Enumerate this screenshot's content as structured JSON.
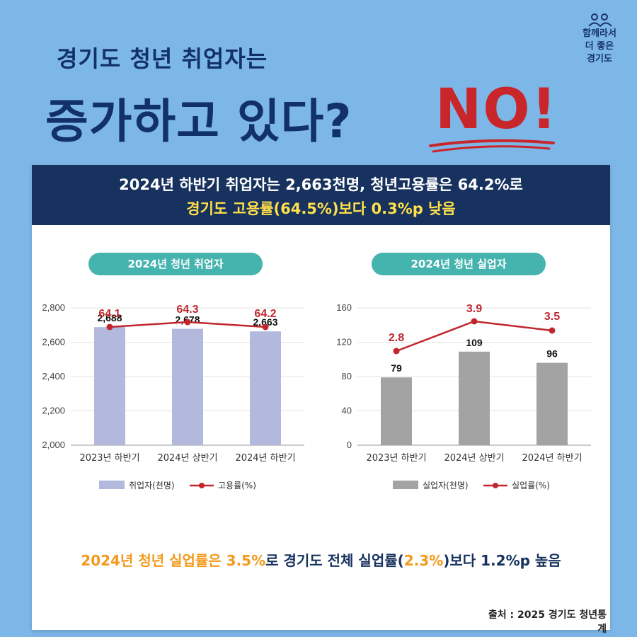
{
  "logo": {
    "lines": [
      "함께라서",
      "더 좋은",
      "경기도"
    ]
  },
  "headline": {
    "line1": "경기도 청년 취업자는",
    "line2": "증가하고 있다?",
    "answer": "NO!"
  },
  "banner": {
    "line1": "2024년 하반기 취업자는 2,663천명, 청년고용률은 64.2%로",
    "line2": "경기도 고용률(64.5%)보다 0.3%p 낮음"
  },
  "bottom_note": {
    "part1": "2024년 청년 실업률은 3.5%",
    "part2": "로 경기도 전체 실업률(",
    "part3": "2.3%",
    "part4": ")보다 1.2%p 높음"
  },
  "source": "출처 : 2025 경기도 청년통계",
  "colors": {
    "navy": "#17325e",
    "teal": "#45b3ae",
    "bar_employed": "#b3b9dc",
    "bar_unemployed": "#a3a3a3",
    "line_red": "#c0272d",
    "orange": "#f39a1c",
    "yellow": "#ffe04a"
  },
  "chart_data": [
    {
      "type": "bar",
      "title": "2024년 청년 취업자",
      "categories": [
        "2023년 하반기",
        "2024년 상반기",
        "2024년 하반기"
      ],
      "ylim": [
        2000,
        2800
      ],
      "yticks": [
        "2,000",
        "2,200",
        "2,400",
        "2,600",
        "2,800"
      ],
      "grid": true,
      "legend_position": "bottom",
      "series": [
        {
          "name": "취업자(천명)",
          "type": "bar",
          "values": [
            2688,
            2678,
            2663
          ],
          "labels": [
            "2,688",
            "2,678",
            "2,663"
          ]
        },
        {
          "name": "고용률(%)",
          "type": "line",
          "values": [
            64.1,
            64.3,
            64.2
          ],
          "labels": [
            "64.1",
            "64.3",
            "64.2"
          ]
        }
      ]
    },
    {
      "type": "bar",
      "title": "2024년 청년 실업자",
      "categories": [
        "2023년 하반기",
        "2024년 상반기",
        "2024년 하반기"
      ],
      "ylim": [
        0,
        160
      ],
      "yticks": [
        "0",
        "40",
        "80",
        "120",
        "160"
      ],
      "grid": true,
      "legend_position": "bottom",
      "series": [
        {
          "name": "실업자(천명)",
          "type": "bar",
          "values": [
            79,
            109,
            96
          ],
          "labels": [
            "79",
            "109",
            "96"
          ]
        },
        {
          "name": "실업률(%)",
          "type": "line",
          "values": [
            2.8,
            3.9,
            3.5
          ],
          "labels": [
            "2.8",
            "3.9",
            "3.5"
          ]
        }
      ]
    }
  ]
}
